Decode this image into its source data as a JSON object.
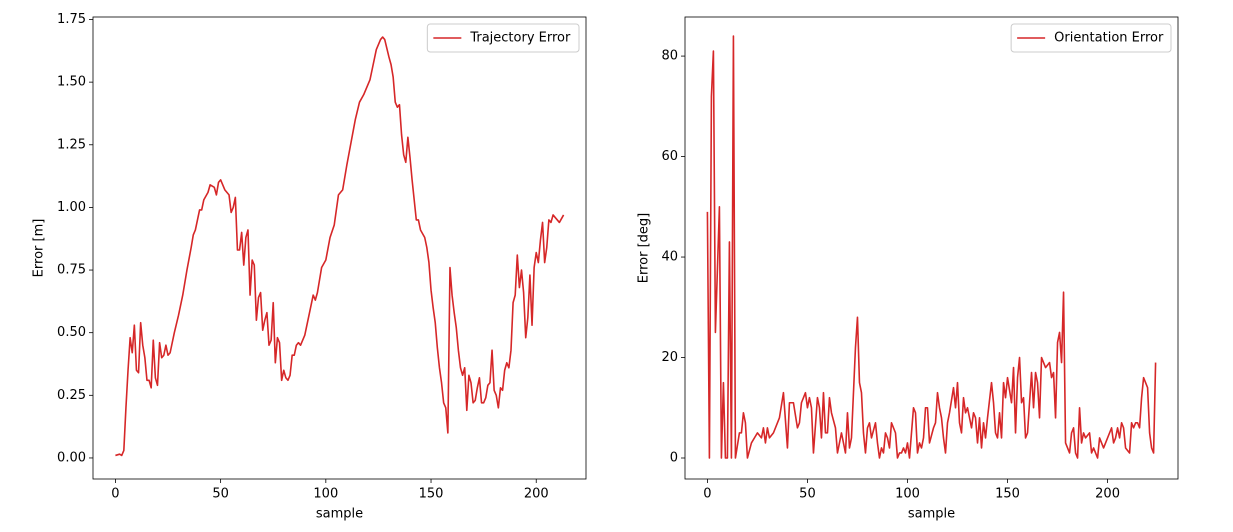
{
  "chart_data": [
    {
      "type": "line",
      "xlabel": "sample",
      "ylabel": "Error [m]",
      "legend": "upper right",
      "xlim": [
        -10.65,
        223.65
      ],
      "ylim": [
        -0.084,
        1.76
      ],
      "xticks": [
        0,
        50,
        100,
        150,
        200
      ],
      "yticks": [
        {
          "value": 0,
          "label": "0.00"
        },
        {
          "value": 0.25,
          "label": "0.25"
        },
        {
          "value": 0.5,
          "label": "0.50"
        },
        {
          "value": 0.75,
          "label": "0.75"
        },
        {
          "value": 1,
          "label": "1.00"
        },
        {
          "value": 1.25,
          "label": "1.25"
        },
        {
          "value": 1.5,
          "label": "1.50"
        },
        {
          "value": 1.75,
          "label": "1.75"
        }
      ],
      "x": [
        0,
        2,
        3,
        4,
        5,
        6,
        7,
        8,
        9,
        10,
        11,
        12,
        13,
        14,
        15,
        16,
        17,
        18,
        19,
        20,
        21,
        22,
        23,
        24,
        25,
        26,
        28,
        30,
        32,
        34,
        36,
        37,
        38,
        40,
        41,
        42,
        44,
        45,
        47,
        48,
        49,
        50,
        52,
        54,
        55,
        56,
        57,
        58,
        59,
        60,
        61,
        62,
        63,
        64,
        65,
        66,
        67,
        68,
        69,
        70,
        71,
        72,
        73,
        74,
        75,
        76,
        77,
        78,
        79,
        80,
        81,
        82,
        83,
        84,
        85,
        86,
        87,
        88,
        90,
        92,
        94,
        95,
        96,
        98,
        100,
        102,
        104,
        106,
        107,
        108,
        110,
        112,
        114,
        116,
        118,
        119,
        121,
        122,
        124,
        126,
        127,
        128,
        130,
        131,
        132,
        133,
        134,
        135,
        136,
        137,
        138,
        139,
        140,
        141,
        142,
        143,
        144,
        145,
        147,
        148,
        149,
        150,
        151,
        152,
        153,
        154,
        155,
        156,
        157,
        158,
        159,
        160,
        161,
        162,
        163,
        164,
        165,
        166,
        167,
        168,
        169,
        170,
        171,
        172,
        173,
        174,
        175,
        176,
        177,
        178,
        179,
        180,
        181,
        182,
        183,
        184,
        185,
        186,
        187,
        188,
        189,
        190,
        191,
        192,
        193,
        194,
        195,
        196,
        197,
        198,
        199,
        200,
        201,
        202,
        203,
        204,
        205,
        206,
        207,
        208,
        210,
        211,
        213
      ],
      "series": [
        {
          "name": "Trajectory Error",
          "color": "#d62728",
          "values": [
            0.01,
            0.015,
            0.01,
            0.03,
            0.2,
            0.35,
            0.48,
            0.42,
            0.53,
            0.35,
            0.34,
            0.54,
            0.45,
            0.4,
            0.31,
            0.31,
            0.28,
            0.47,
            0.32,
            0.29,
            0.46,
            0.4,
            0.41,
            0.45,
            0.41,
            0.42,
            0.5,
            0.57,
            0.65,
            0.75,
            0.84,
            0.89,
            0.91,
            0.99,
            0.99,
            1.03,
            1.06,
            1.09,
            1.08,
            1.05,
            1.1,
            1.11,
            1.07,
            1.05,
            0.98,
            1.0,
            1.04,
            0.83,
            0.83,
            0.9,
            0.77,
            0.88,
            0.91,
            0.65,
            0.79,
            0.77,
            0.55,
            0.64,
            0.66,
            0.51,
            0.55,
            0.58,
            0.45,
            0.47,
            0.62,
            0.38,
            0.48,
            0.46,
            0.31,
            0.35,
            0.32,
            0.31,
            0.33,
            0.41,
            0.41,
            0.45,
            0.46,
            0.45,
            0.49,
            0.57,
            0.65,
            0.63,
            0.66,
            0.76,
            0.79,
            0.88,
            0.93,
            1.05,
            1.06,
            1.07,
            1.17,
            1.26,
            1.35,
            1.42,
            1.45,
            1.47,
            1.51,
            1.55,
            1.63,
            1.67,
            1.68,
            1.67,
            1.6,
            1.57,
            1.52,
            1.42,
            1.4,
            1.41,
            1.29,
            1.21,
            1.18,
            1.28,
            1.2,
            1.11,
            1.03,
            0.95,
            0.95,
            0.91,
            0.88,
            0.84,
            0.78,
            0.67,
            0.6,
            0.54,
            0.44,
            0.36,
            0.3,
            0.22,
            0.2,
            0.1,
            0.76,
            0.65,
            0.58,
            0.52,
            0.43,
            0.36,
            0.33,
            0.36,
            0.19,
            0.33,
            0.3,
            0.22,
            0.23,
            0.28,
            0.32,
            0.22,
            0.22,
            0.24,
            0.29,
            0.3,
            0.43,
            0.27,
            0.25,
            0.2,
            0.28,
            0.27,
            0.35,
            0.38,
            0.36,
            0.43,
            0.62,
            0.65,
            0.81,
            0.68,
            0.75,
            0.66,
            0.48,
            0.56,
            0.73,
            0.53,
            0.76,
            0.82,
            0.78,
            0.87,
            0.94,
            0.78,
            0.84,
            0.95,
            0.94,
            0.97,
            0.95,
            0.94,
            0.97
          ]
        }
      ]
    },
    {
      "type": "line",
      "xlabel": "sample",
      "ylabel": "Error [deg]",
      "legend": "upper right",
      "xlim": [
        -11.2,
        235.2
      ],
      "ylim": [
        -4.18,
        87.78
      ],
      "xticks": [
        0,
        50,
        100,
        150,
        200
      ],
      "yticks": [
        0,
        20,
        40,
        60,
        80
      ],
      "x": [
        0,
        1,
        2,
        3,
        4,
        6,
        7,
        8,
        9,
        10,
        11,
        12,
        13,
        14,
        16,
        17,
        18,
        19,
        20,
        22,
        25,
        27,
        28,
        29,
        30,
        31,
        33,
        36,
        38,
        40,
        41,
        43,
        45,
        46,
        47,
        49,
        50,
        51,
        52,
        53,
        55,
        56,
        57,
        58,
        59,
        60,
        61,
        62,
        64,
        65,
        67,
        69,
        70,
        71,
        72,
        74,
        75,
        76,
        77,
        78,
        79,
        80,
        81,
        82,
        84,
        85,
        86,
        87,
        88,
        89,
        90,
        91,
        92,
        94,
        95,
        96,
        97,
        98,
        99,
        100,
        101,
        103,
        104,
        105,
        106,
        107,
        108,
        109,
        110,
        111,
        113,
        114,
        115,
        116,
        117,
        118,
        119,
        120,
        121,
        123,
        124,
        125,
        126,
        127,
        128,
        129,
        130,
        132,
        133,
        134,
        135,
        136,
        137,
        138,
        139,
        140,
        142,
        143,
        144,
        145,
        146,
        147,
        148,
        149,
        150,
        152,
        153,
        154,
        155,
        156,
        157,
        158,
        159,
        160,
        162,
        163,
        164,
        165,
        166,
        167,
        168,
        169,
        171,
        172,
        173,
        174,
        175,
        176,
        177,
        178,
        179,
        181,
        182,
        183,
        184,
        185,
        186,
        187,
        188,
        189,
        191,
        192,
        193,
        194,
        195,
        196,
        197,
        198,
        199,
        201,
        202,
        203,
        204,
        205,
        206,
        207,
        208,
        209,
        211,
        212,
        213,
        214,
        215,
        216,
        217,
        218,
        220,
        221,
        222,
        223,
        224
      ],
      "series": [
        {
          "name": "Orientation Error",
          "color": "#d62728",
          "values": [
            49,
            0,
            72,
            81,
            25,
            50,
            0,
            15,
            0,
            0,
            43,
            0,
            84,
            0,
            5,
            5,
            9,
            7,
            0,
            3,
            5,
            4,
            6,
            3,
            6,
            4,
            5,
            8,
            13,
            2,
            11,
            11,
            6,
            7,
            11,
            13,
            10,
            12,
            10,
            1,
            12,
            10,
            4,
            13,
            5,
            5,
            12,
            9,
            6,
            1,
            5,
            1,
            9,
            2,
            4,
            22,
            28,
            15,
            13,
            5,
            1,
            6,
            7,
            4,
            7,
            3,
            0,
            2,
            1,
            5,
            4,
            2,
            7,
            5,
            0,
            1,
            1,
            2,
            1,
            3,
            0,
            10,
            9,
            1,
            3,
            2,
            4,
            10,
            10,
            3,
            6,
            7,
            13,
            10,
            8,
            4,
            1,
            7,
            9,
            14,
            10,
            15,
            7,
            5,
            12,
            9,
            10,
            6,
            9,
            8,
            3,
            8,
            2,
            7,
            4,
            8,
            15,
            11,
            5,
            4,
            9,
            4,
            15,
            12,
            16,
            11,
            18,
            5,
            16,
            20,
            11,
            12,
            4,
            5,
            17,
            10,
            17,
            15,
            8,
            20,
            19,
            18,
            19,
            16,
            17,
            8,
            23,
            25,
            19,
            33,
            3,
            1,
            5,
            6,
            1,
            0,
            10,
            3,
            5,
            4,
            5,
            1,
            2,
            1,
            0,
            4,
            3,
            2,
            3,
            5,
            6,
            3,
            4,
            6,
            4,
            7,
            6,
            2,
            1,
            7,
            6,
            7,
            7,
            6,
            12,
            16,
            14,
            5,
            2,
            1,
            19
          ]
        }
      ]
    }
  ]
}
